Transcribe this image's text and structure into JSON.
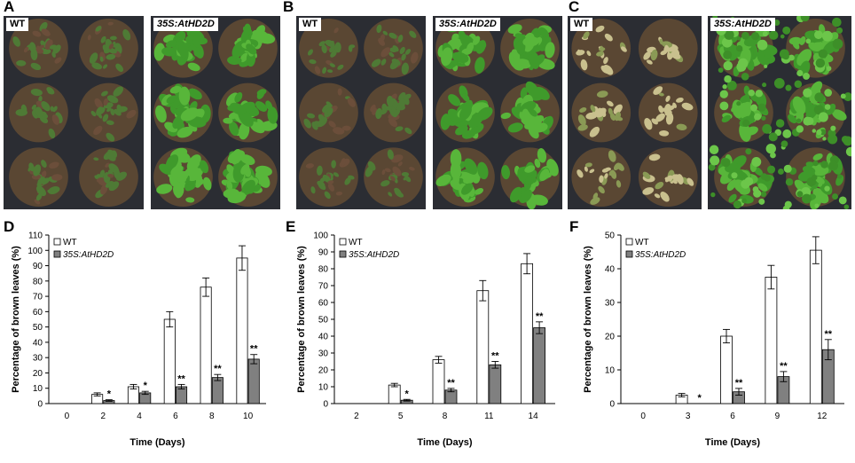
{
  "panels": {
    "A": {
      "letter": "A",
      "left_label": "WT",
      "right_label": "35S:AtHD2D"
    },
    "B": {
      "letter": "B",
      "left_label": "WT",
      "right_label": "35S:AtHD2D"
    },
    "C": {
      "letter": "C",
      "left_label": "WT",
      "right_label": "35S:AtHD2D"
    },
    "D": {
      "letter": "D"
    },
    "E": {
      "letter": "E"
    },
    "F": {
      "letter": "F"
    }
  },
  "colors": {
    "wt_bar": "#ffffff",
    "transgenic_bar": "#808080",
    "bar_stroke": "#000000",
    "wt_plant": "#4e7a35",
    "transgenic_plant": "#3f9a2b",
    "tray": "#2b2d33",
    "soil": "#5a4733",
    "dead_plant": "#c9c08e"
  },
  "chart_data": [
    {
      "type": "bar",
      "ylabel": "Percentage of brown leaves (%)",
      "xlabel": "Time (Days)",
      "categories": [
        "0",
        "2",
        "4",
        "6",
        "8",
        "10"
      ],
      "ylim": [
        0,
        110
      ],
      "yticks": [
        0,
        10,
        20,
        30,
        40,
        50,
        60,
        70,
        80,
        90,
        100,
        110
      ],
      "legend_position": "top-left",
      "series": [
        {
          "name": "WT",
          "values": [
            0,
            6,
            11,
            55,
            76,
            95
          ],
          "errors": [
            0,
            1,
            1.5,
            5,
            6,
            8
          ],
          "sig": [
            "",
            "",
            "",
            "",
            "",
            ""
          ]
        },
        {
          "name": "35S:AtHD2D",
          "values": [
            0,
            2,
            7,
            11,
            17,
            29
          ],
          "errors": [
            0,
            0.5,
            1,
            1.5,
            2,
            3
          ],
          "sig": [
            "",
            "*",
            "*",
            "**",
            "**",
            "**"
          ]
        }
      ]
    },
    {
      "type": "bar",
      "ylabel": "Percentage of brown leaves (%)",
      "xlabel": "Time (Days)",
      "categories": [
        "2",
        "5",
        "8",
        "11",
        "14"
      ],
      "ylim": [
        0,
        100
      ],
      "yticks": [
        0,
        10,
        20,
        30,
        40,
        50,
        60,
        70,
        80,
        90,
        100
      ],
      "legend_position": "top-left",
      "series": [
        {
          "name": "WT",
          "values": [
            0,
            11,
            26,
            67,
            83
          ],
          "errors": [
            0,
            1,
            2,
            6,
            6
          ],
          "sig": [
            "",
            "",
            "",
            "",
            ""
          ]
        },
        {
          "name": "35S:AtHD2D",
          "values": [
            0,
            2,
            8,
            23,
            45
          ],
          "errors": [
            0,
            0.5,
            1,
            2,
            3.5
          ],
          "sig": [
            "",
            "*",
            "**",
            "**",
            "**"
          ]
        }
      ]
    },
    {
      "type": "bar",
      "ylabel": "Percentage of brown leaves (%)",
      "xlabel": "Time (Days)",
      "categories": [
        "0",
        "3",
        "6",
        "9",
        "12"
      ],
      "ylim": [
        0,
        50
      ],
      "yticks": [
        0,
        10,
        20,
        30,
        40,
        50
      ],
      "legend_position": "top-left",
      "series": [
        {
          "name": "WT",
          "values": [
            0,
            2.5,
            20,
            37.5,
            45.5
          ],
          "errors": [
            0,
            0.5,
            2,
            3.5,
            4
          ],
          "sig": [
            "",
            "",
            "",
            "",
            ""
          ]
        },
        {
          "name": "35S:AtHD2D",
          "values": [
            0,
            0,
            3.5,
            8,
            16
          ],
          "errors": [
            0,
            0,
            1,
            1.5,
            3
          ],
          "sig": [
            "",
            "*",
            "**",
            "**",
            "**"
          ]
        }
      ]
    }
  ]
}
